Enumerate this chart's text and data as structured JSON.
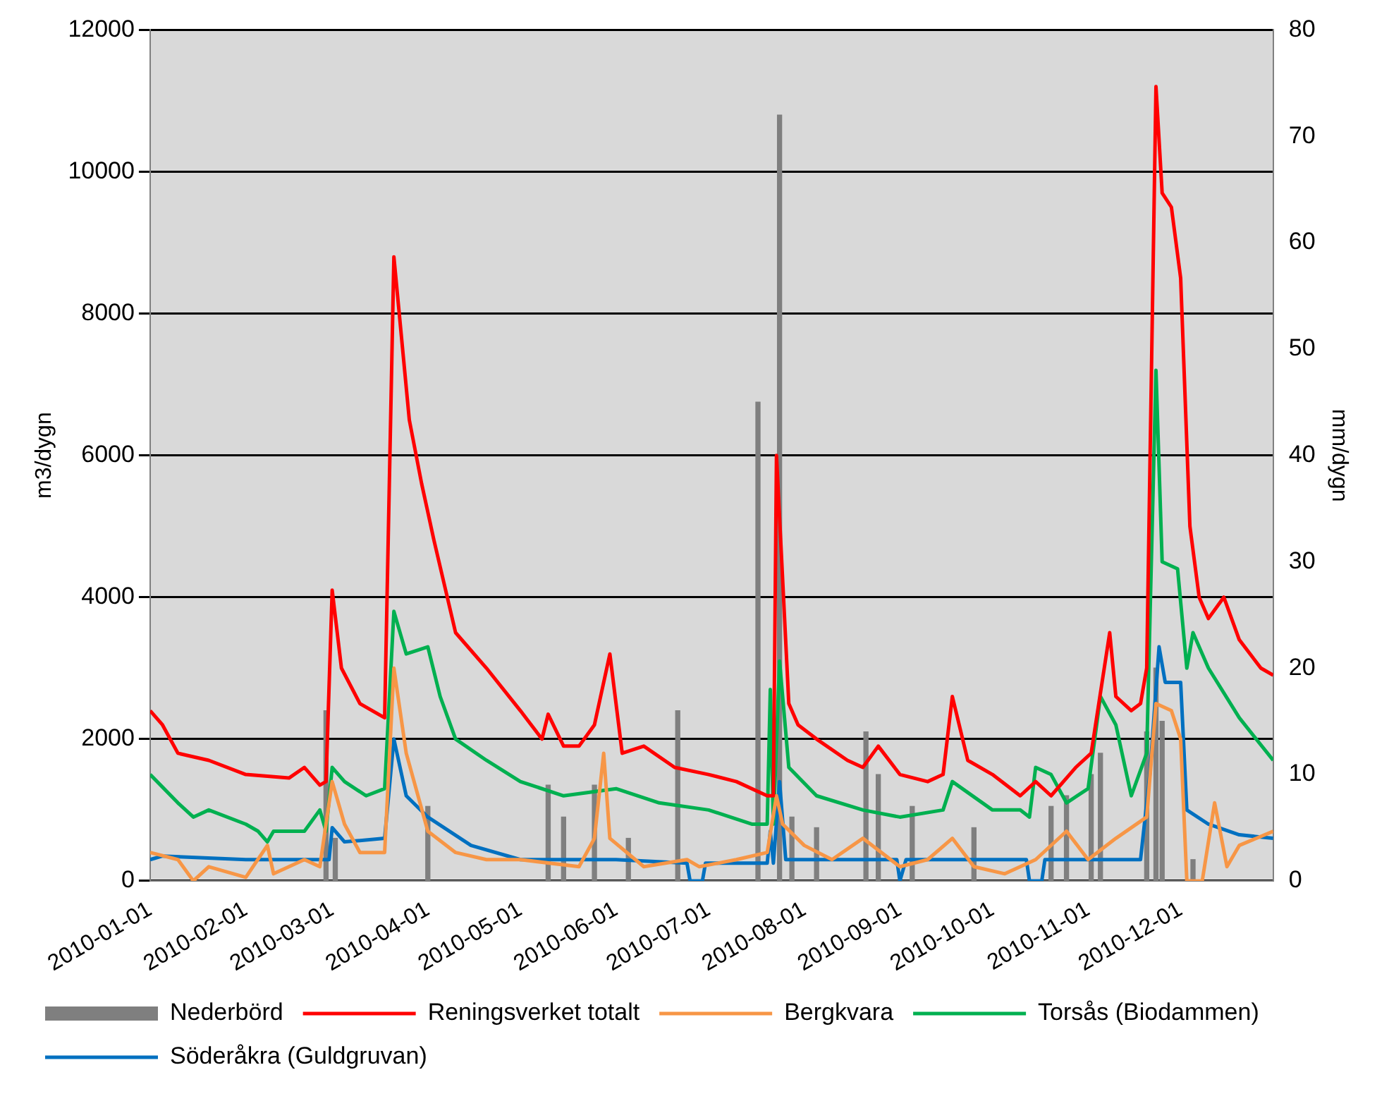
{
  "chart_data": {
    "type": "line",
    "ylabel": "m3/dygn",
    "y2label": "mm/dygn",
    "xlim": [
      "2010-01-01",
      "2010-12-31"
    ],
    "xticks": [
      "2010-01-01",
      "2010-02-01",
      "2010-03-01",
      "2010-04-01",
      "2010-05-01",
      "2010-06-01",
      "2010-07-01",
      "2010-08-01",
      "2010-09-01",
      "2010-10-01",
      "2010-11-01",
      "2010-12-01"
    ],
    "ylim": [
      0,
      12000
    ],
    "yticks": [
      0,
      2000,
      4000,
      6000,
      8000,
      10000,
      12000
    ],
    "y2lim": [
      0,
      80
    ],
    "y2ticks": [
      0,
      10,
      20,
      30,
      40,
      50,
      60,
      70,
      80
    ],
    "grid": "y",
    "legend": "bottom",
    "marker": "none",
    "line_style": "solid",
    "series": [
      {
        "name": "Nederbörd",
        "type": "bar",
        "axis": "y2",
        "color": "#7f7f7f",
        "x": [
          "2010-02-27",
          "2010-03-02",
          "2010-04-01",
          "2010-05-10",
          "2010-05-15",
          "2010-05-25",
          "2010-06-05",
          "2010-06-21",
          "2010-07-17",
          "2010-07-24",
          "2010-07-28",
          "2010-08-05",
          "2010-08-21",
          "2010-08-25",
          "2010-09-05",
          "2010-09-25",
          "2010-10-20",
          "2010-10-25",
          "2010-11-02",
          "2010-11-05",
          "2010-11-20",
          "2010-11-23",
          "2010-11-25",
          "2010-12-05"
        ],
        "values": [
          16,
          4,
          7,
          9,
          6,
          9,
          4,
          16,
          45,
          72,
          6,
          5,
          14,
          10,
          7,
          5,
          7,
          8,
          10,
          12,
          14,
          20,
          15,
          2
        ]
      },
      {
        "name": "Reningsverket totalt",
        "color": "#ff0000",
        "x": [
          "2010-01-01",
          "2010-01-05",
          "2010-01-10",
          "2010-01-20",
          "2010-02-01",
          "2010-02-15",
          "2010-02-20",
          "2010-02-25",
          "2010-02-27",
          "2010-03-01",
          "2010-03-04",
          "2010-03-10",
          "2010-03-18",
          "2010-03-21",
          "2010-03-26",
          "2010-03-30",
          "2010-04-01",
          "2010-04-03",
          "2010-04-10",
          "2010-04-20",
          "2010-05-01",
          "2010-05-08",
          "2010-05-10",
          "2010-05-15",
          "2010-05-20",
          "2010-05-25",
          "2010-05-30",
          "2010-06-03",
          "2010-06-10",
          "2010-06-20",
          "2010-07-01",
          "2010-07-10",
          "2010-07-20",
          "2010-07-22",
          "2010-07-23",
          "2010-07-27",
          "2010-07-30",
          "2010-08-05",
          "2010-08-15",
          "2010-08-20",
          "2010-08-25",
          "2010-09-01",
          "2010-09-10",
          "2010-09-15",
          "2010-09-18",
          "2010-09-23",
          "2010-10-01",
          "2010-10-10",
          "2010-10-15",
          "2010-10-20",
          "2010-10-28",
          "2010-11-02",
          "2010-11-08",
          "2010-11-10",
          "2010-11-15",
          "2010-11-18",
          "2010-11-20",
          "2010-11-23",
          "2010-11-25",
          "2010-11-28",
          "2010-12-01",
          "2010-12-04",
          "2010-12-07",
          "2010-12-10",
          "2010-12-15",
          "2010-12-20",
          "2010-12-27",
          "2010-12-31"
        ],
        "values": [
          2400,
          2200,
          1800,
          1700,
          1500,
          1450,
          1600,
          1350,
          1400,
          4100,
          3000,
          2500,
          2300,
          8800,
          6500,
          5600,
          5200,
          4800,
          3500,
          3000,
          2400,
          2000,
          2350,
          1900,
          1900,
          2200,
          3200,
          1800,
          1900,
          1600,
          1500,
          1400,
          1200,
          1200,
          6000,
          2500,
          2200,
          2000,
          1700,
          1600,
          1900,
          1500,
          1400,
          1500,
          2600,
          1700,
          1500,
          1200,
          1400,
          1200,
          1600,
          1800,
          3500,
          2600,
          2400,
          2500,
          3000,
          11200,
          9700,
          9500,
          8500,
          5000,
          4000,
          3700,
          4000,
          3400,
          3000,
          2900
        ]
      },
      {
        "name": "Bergkvara",
        "color": "#f79646",
        "x": [
          "2010-01-01",
          "2010-01-10",
          "2010-01-15",
          "2010-01-20",
          "2010-02-01",
          "2010-02-08",
          "2010-02-10",
          "2010-02-20",
          "2010-02-25",
          "2010-03-01",
          "2010-03-05",
          "2010-03-10",
          "2010-03-18",
          "2010-03-21",
          "2010-03-25",
          "2010-04-01",
          "2010-04-10",
          "2010-04-20",
          "2010-05-01",
          "2010-05-20",
          "2010-05-25",
          "2010-05-28",
          "2010-05-30",
          "2010-06-10",
          "2010-06-24",
          "2010-06-28",
          "2010-07-10",
          "2010-07-20",
          "2010-07-23",
          "2010-07-25",
          "2010-08-01",
          "2010-08-10",
          "2010-08-20",
          "2010-09-01",
          "2010-09-10",
          "2010-09-18",
          "2010-09-25",
          "2010-10-05",
          "2010-10-15",
          "2010-10-25",
          "2010-11-01",
          "2010-11-10",
          "2010-11-20",
          "2010-11-23",
          "2010-11-28",
          "2010-12-01",
          "2010-12-03",
          "2010-12-08",
          "2010-12-12",
          "2010-12-16",
          "2010-12-20",
          "2010-12-31"
        ],
        "values": [
          400,
          300,
          0,
          200,
          50,
          500,
          100,
          300,
          200,
          1400,
          800,
          400,
          400,
          3000,
          1800,
          700,
          400,
          300,
          300,
          200,
          600,
          1800,
          600,
          200,
          300,
          200,
          300,
          400,
          1200,
          800,
          500,
          300,
          600,
          200,
          300,
          600,
          200,
          100,
          300,
          700,
          300,
          600,
          900,
          2500,
          2400,
          2000,
          0,
          0,
          1100,
          200,
          500,
          700
        ]
      },
      {
        "name": "Torsås (Biodammen)",
        "color": "#00b050",
        "x": [
          "2010-01-01",
          "2010-01-10",
          "2010-01-15",
          "2010-01-20",
          "2010-02-01",
          "2010-02-05",
          "2010-02-08",
          "2010-02-10",
          "2010-02-20",
          "2010-02-25",
          "2010-02-27",
          "2010-03-01",
          "2010-03-05",
          "2010-03-12",
          "2010-03-18",
          "2010-03-21",
          "2010-03-25",
          "2010-04-01",
          "2010-04-05",
          "2010-04-10",
          "2010-04-20",
          "2010-05-01",
          "2010-05-15",
          "2010-06-01",
          "2010-06-15",
          "2010-07-01",
          "2010-07-15",
          "2010-07-20",
          "2010-07-21",
          "2010-07-22",
          "2010-07-24",
          "2010-07-27",
          "2010-08-05",
          "2010-08-20",
          "2010-09-01",
          "2010-09-15",
          "2010-09-18",
          "2010-10-01",
          "2010-10-10",
          "2010-10-13",
          "2010-10-15",
          "2010-10-20",
          "2010-10-25",
          "2010-11-01",
          "2010-11-05",
          "2010-11-10",
          "2010-11-15",
          "2010-11-20",
          "2010-11-23",
          "2010-11-25",
          "2010-11-30",
          "2010-12-03",
          "2010-12-05",
          "2010-12-10",
          "2010-12-20",
          "2010-12-31"
        ],
        "values": [
          1500,
          1100,
          900,
          1000,
          800,
          700,
          550,
          700,
          700,
          1000,
          700,
          1600,
          1400,
          1200,
          1300,
          3800,
          3200,
          3300,
          2600,
          2000,
          1700,
          1400,
          1200,
          1300,
          1100,
          1000,
          800,
          800,
          2700,
          800,
          3100,
          1600,
          1200,
          1000,
          900,
          1000,
          1400,
          1000,
          1000,
          900,
          1600,
          1500,
          1100,
          1300,
          2600,
          2200,
          1200,
          1800,
          7200,
          4500,
          4400,
          3000,
          3500,
          3000,
          2300,
          1700
        ]
      },
      {
        "name": "Söderåkra (Guldgruvan)",
        "color": "#0070c0",
        "x": [
          "2010-01-01",
          "2010-01-05",
          "2010-02-01",
          "2010-02-28",
          "2010-03-01",
          "2010-03-05",
          "2010-03-18",
          "2010-03-21",
          "2010-03-25",
          "2010-04-01",
          "2010-04-15",
          "2010-05-01",
          "2010-06-01",
          "2010-06-24",
          "2010-06-25",
          "2010-06-29",
          "2010-06-30",
          "2010-07-20",
          "2010-07-21",
          "2010-07-22",
          "2010-07-24",
          "2010-07-26",
          "2010-08-31",
          "2010-09-01",
          "2010-09-03",
          "2010-10-12",
          "2010-10-13",
          "2010-10-17",
          "2010-10-18",
          "2010-11-18",
          "2010-11-21",
          "2010-11-24",
          "2010-11-26",
          "2010-12-01",
          "2010-12-03",
          "2010-12-10",
          "2010-12-20",
          "2010-12-31"
        ],
        "values": [
          300,
          350,
          300,
          300,
          750,
          550,
          600,
          2000,
          1200,
          900,
          500,
          300,
          300,
          250,
          0,
          0,
          250,
          250,
          700,
          250,
          1400,
          300,
          300,
          0,
          300,
          300,
          0,
          0,
          300,
          300,
          1500,
          3300,
          2800,
          2800,
          1000,
          800,
          650,
          600
        ]
      }
    ]
  }
}
